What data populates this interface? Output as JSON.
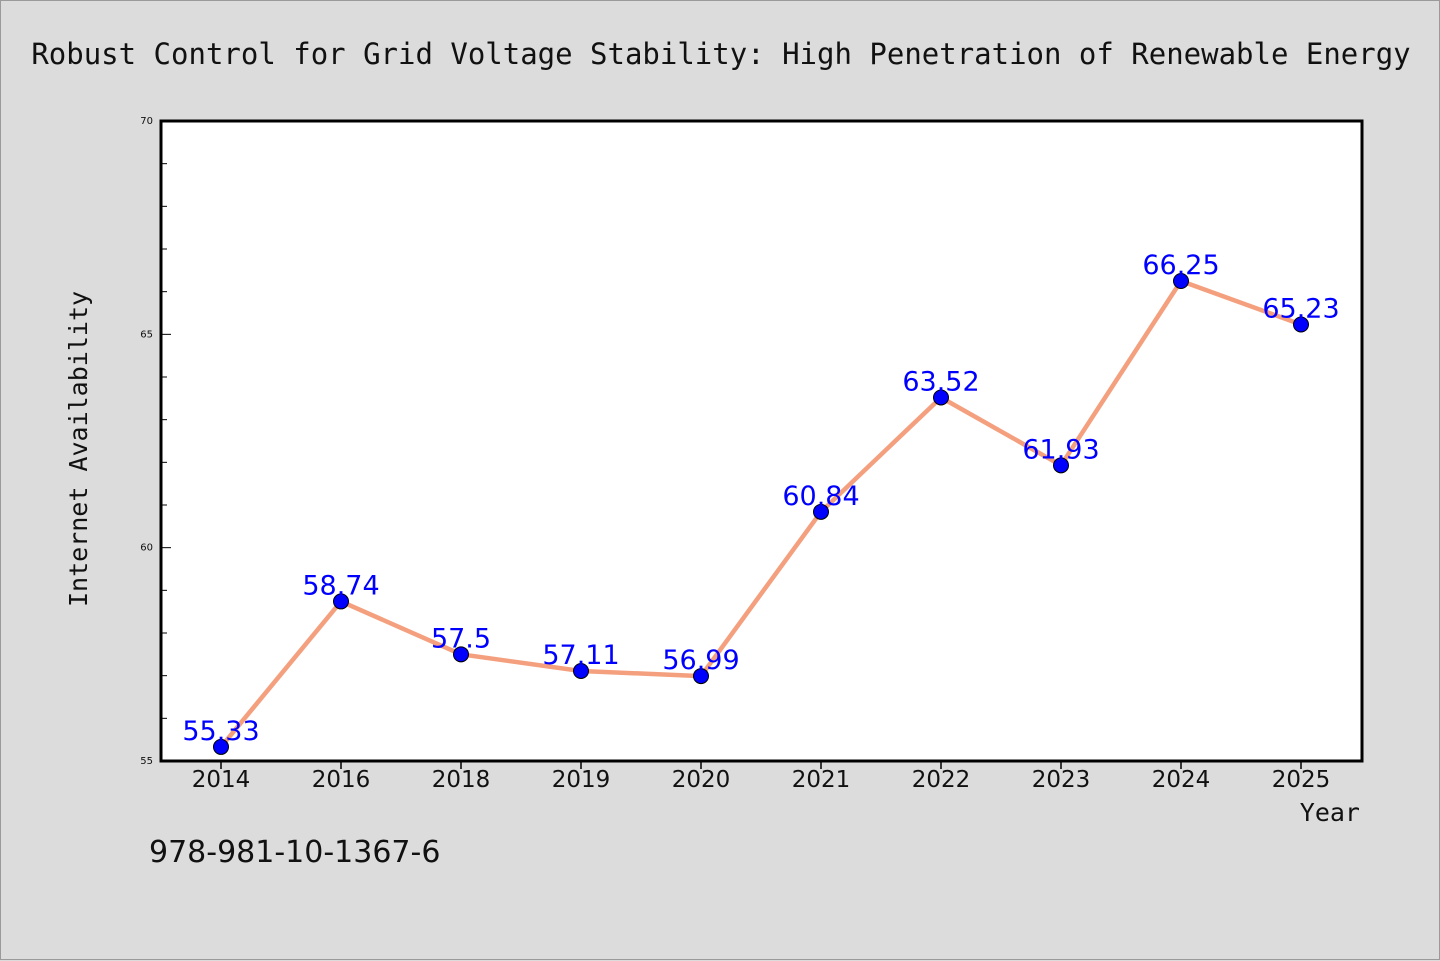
{
  "chart_data": {
    "type": "line",
    "title": "Robust Control for Grid Voltage Stability: High Penetration of Renewable Energy",
    "xlabel": "Year",
    "ylabel": "Internet Availability",
    "categories": [
      "2014",
      "2016",
      "2018",
      "2019",
      "2020",
      "2021",
      "2022",
      "2023",
      "2024",
      "2025"
    ],
    "series": [
      {
        "values": [
          55.33,
          58.74,
          57.5,
          57.11,
          56.99,
          60.84,
          63.52,
          61.93,
          66.25,
          65.23
        ],
        "data_labels": [
          "55.33",
          "58.74",
          "57.5",
          "57.11",
          "56.99",
          "60.84",
          "63.52",
          "61.93",
          "66.25",
          "65.23"
        ],
        "line_color": "#f4a07e",
        "marker_color": "#0000ff"
      }
    ],
    "ylim": [
      55,
      70
    ],
    "yticks": [
      55,
      60,
      65,
      70
    ],
    "ytick_labels": [
      "55",
      "60",
      "65",
      "70"
    ],
    "grid": false,
    "label_color": "#0000ff",
    "plot_background": "#ffffff",
    "figure_background": "#dcdcdc"
  },
  "footer": {
    "code": "978-981-10-1367-6"
  }
}
